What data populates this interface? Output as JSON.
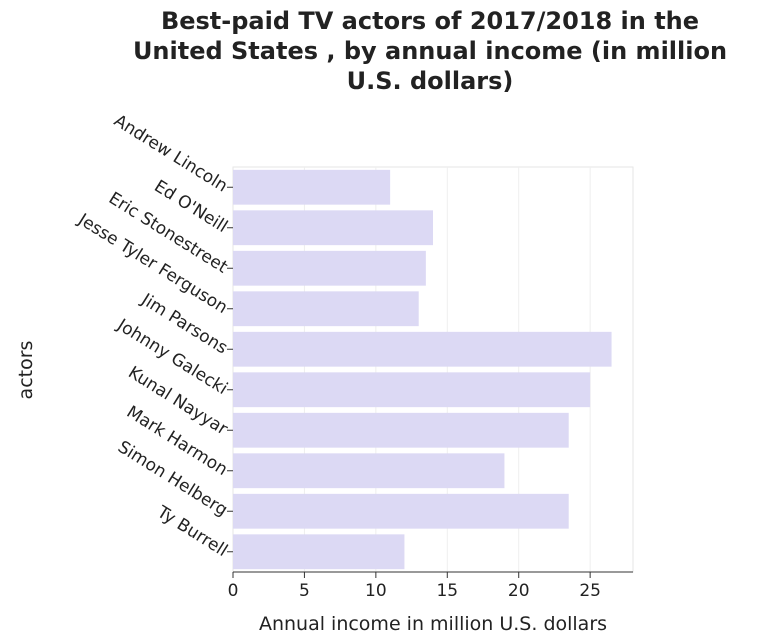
{
  "chart_data": {
    "type": "bar",
    "orientation": "horizontal",
    "title": "Best-paid TV actors of 2017/2018 in the United States , by annual income (in million U.S. dollars)",
    "title_lines": [
      "Best-paid TV actors of 2017/2018 in the",
      "United States , by annual income (in million",
      "U.S. dollars)"
    ],
    "xlabel": "Annual income in million U.S. dollars",
    "ylabel": "actors",
    "categories": [
      "Andrew Lincoln",
      "Ed O'Neill",
      "Eric Stonestreet",
      "Jesse Tyler Ferguson",
      "Jim Parsons",
      "Johnny Galecki",
      "Kunal Nayyar",
      "Mark Harmon",
      "Simon Helberg",
      "Ty Burrell"
    ],
    "values": [
      11,
      14,
      13.5,
      13,
      26.5,
      25,
      23.5,
      19,
      23.5,
      12
    ],
    "xlim": [
      0,
      28
    ],
    "xticks": [
      0,
      5,
      10,
      15,
      20,
      25
    ],
    "grid": true,
    "colors": {
      "bar": "#dcd9f4",
      "plot_bg": "#ffffff",
      "grid": "#eeeeee",
      "axis": "#333333"
    }
  }
}
